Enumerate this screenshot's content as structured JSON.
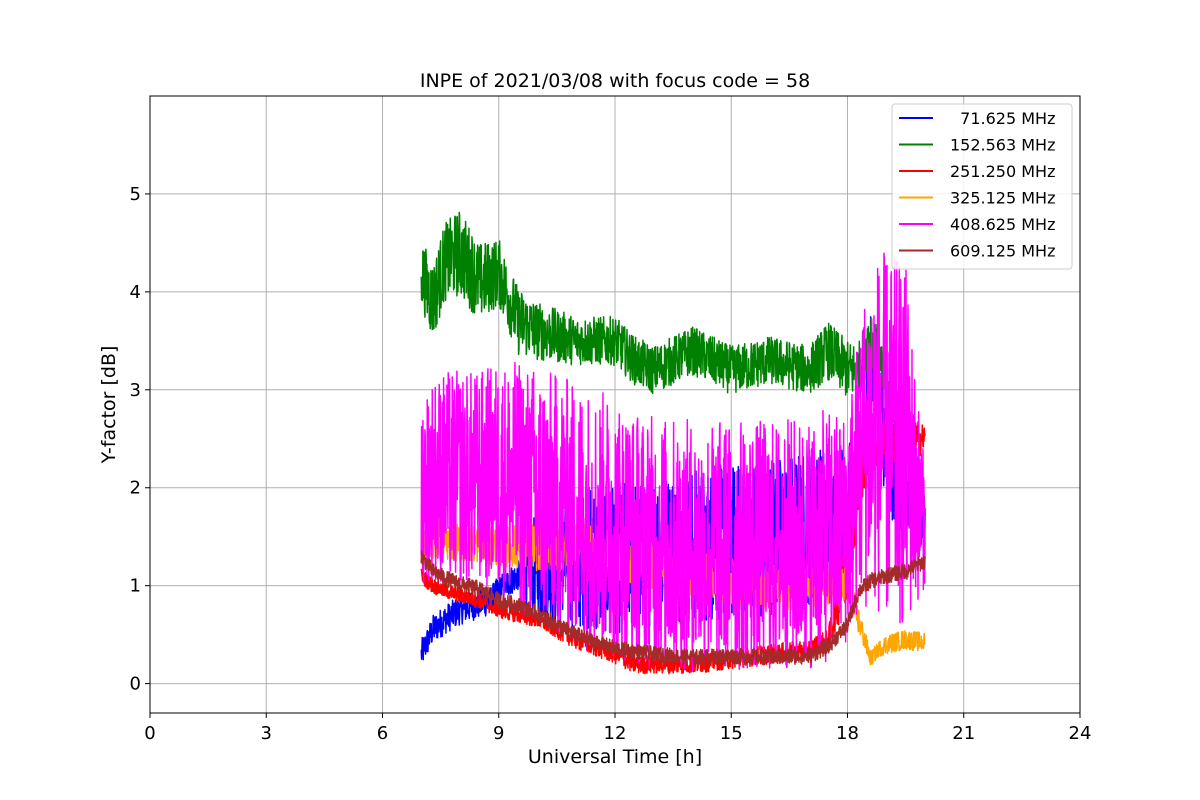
{
  "chart_data": {
    "type": "line",
    "title": "INPE of 2021/03/08 with focus code = 58",
    "xlabel": "Universal Time [h]",
    "ylabel": "Y-factor [dB]",
    "xlim": [
      0,
      24
    ],
    "ylim": [
      -0.3,
      6.0
    ],
    "xticks": [
      0,
      3,
      6,
      9,
      12,
      15,
      18,
      21,
      24
    ],
    "yticks": [
      0,
      1,
      2,
      3,
      4,
      5
    ],
    "grid": true,
    "legend_position": "top-right",
    "series": [
      {
        "name": "  71.625 MHz",
        "color": "#0000ff",
        "x": [
          7.0,
          7.3,
          7.6,
          8.0,
          8.4,
          8.8,
          9.0,
          9.3,
          9.5,
          10.0,
          11.0,
          12.0,
          13.0,
          14.0,
          15.0,
          16.0,
          17.0,
          18.0,
          18.3,
          18.6,
          19.0,
          19.5,
          20.0
        ],
        "y": [
          0.3,
          0.55,
          0.65,
          0.75,
          0.8,
          0.85,
          0.95,
          1.05,
          1.1,
          1.2,
          1.25,
          1.3,
          1.35,
          1.4,
          1.45,
          1.5,
          1.6,
          1.7,
          2.0,
          3.4,
          2.4,
          1.9,
          1.6
        ],
        "band": [
          0.15,
          0.15,
          0.15,
          0.15,
          0.15,
          0.15,
          0.15,
          0.15,
          0.15,
          0.6,
          0.7,
          0.8,
          0.8,
          0.8,
          0.8,
          0.8,
          0.8,
          0.8,
          0.4,
          0.4,
          0.6,
          0.6,
          0.3
        ]
      },
      {
        "name": "152.563 MHz",
        "color": "#008000",
        "x": [
          7.0,
          7.3,
          7.6,
          8.0,
          8.5,
          9.0,
          9.5,
          10.0,
          11.0,
          12.0,
          12.5,
          13.0,
          14.0,
          15.0,
          16.0,
          17.0,
          17.5,
          18.0,
          18.3,
          18.6,
          19.0,
          19.5,
          20.0
        ],
        "y": [
          4.2,
          3.9,
          4.3,
          4.4,
          4.1,
          4.2,
          3.7,
          3.6,
          3.5,
          3.5,
          3.3,
          3.2,
          3.4,
          3.2,
          3.3,
          3.2,
          3.4,
          3.2,
          3.2,
          3.6,
          3.0,
          2.6,
          1.8
        ],
        "band": [
          0.35,
          0.4,
          0.4,
          0.45,
          0.4,
          0.35,
          0.35,
          0.3,
          0.25,
          0.25,
          0.25,
          0.25,
          0.25,
          0.25,
          0.25,
          0.25,
          0.3,
          0.3,
          0.3,
          0.3,
          0.25,
          0.2,
          0.1
        ]
      },
      {
        "name": "251.250 MHz",
        "color": "#ff0000",
        "x": [
          7.0,
          7.3,
          7.6,
          8.0,
          8.5,
          9.0,
          9.5,
          10.0,
          11.0,
          12.0,
          12.5,
          13.0,
          14.0,
          15.0,
          16.0,
          17.0,
          17.5,
          18.0,
          18.3,
          18.6,
          19.0,
          19.5,
          20.0
        ],
        "y": [
          1.1,
          1.0,
          0.95,
          0.9,
          0.85,
          0.75,
          0.7,
          0.65,
          0.45,
          0.3,
          0.2,
          0.2,
          0.2,
          0.25,
          0.3,
          0.35,
          0.45,
          1.2,
          2.0,
          2.4,
          2.5,
          2.5,
          2.5
        ],
        "band": [
          0.08,
          0.08,
          0.08,
          0.08,
          0.08,
          0.08,
          0.08,
          0.08,
          0.1,
          0.1,
          0.1,
          0.1,
          0.1,
          0.1,
          0.1,
          0.1,
          0.1,
          0.4,
          0.3,
          0.25,
          0.25,
          0.25,
          0.15
        ]
      },
      {
        "name": "325.125 MHz",
        "color": "#ffa500",
        "x": [
          7.0,
          8.0,
          9.0,
          10.0,
          11.0,
          12.0,
          13.0,
          14.0,
          15.0,
          16.0,
          17.0,
          18.0,
          18.6,
          18.8,
          19.0,
          19.5,
          20.0
        ],
        "y": [
          1.5,
          1.45,
          1.4,
          1.4,
          1.4,
          1.3,
          1.2,
          1.1,
          1.05,
          1.0,
          1.0,
          1.0,
          0.25,
          0.35,
          0.4,
          0.45,
          0.42
        ],
        "band": [
          0.25,
          0.2,
          0.2,
          0.25,
          0.25,
          0.25,
          0.25,
          0.25,
          0.25,
          0.25,
          0.25,
          0.2,
          0.08,
          0.08,
          0.1,
          0.1,
          0.1
        ]
      },
      {
        "name": "408.625 MHz",
        "color": "#ff00ff",
        "x": [
          7.0,
          7.3,
          7.6,
          8.0,
          8.5,
          9.0,
          9.5,
          10.0,
          11.0,
          12.0,
          12.5,
          13.0,
          14.0,
          15.0,
          16.0,
          17.0,
          17.5,
          18.0,
          18.3,
          18.6,
          19.0,
          19.5,
          20.0
        ],
        "y": [
          2.0,
          2.1,
          2.1,
          2.1,
          2.1,
          2.1,
          2.0,
          1.9,
          1.75,
          1.6,
          1.5,
          1.45,
          1.4,
          1.4,
          1.4,
          1.45,
          1.5,
          1.6,
          2.2,
          2.6,
          2.5,
          2.4,
          1.6
        ],
        "band": [
          1.0,
          1.05,
          1.1,
          1.1,
          1.1,
          1.2,
          1.3,
          1.35,
          1.35,
          1.35,
          1.3,
          1.3,
          1.3,
          1.3,
          1.3,
          1.3,
          1.3,
          1.2,
          1.5,
          1.8,
          1.9,
          1.9,
          0.6
        ]
      },
      {
        "name": "609.125 MHz",
        "color": "#a52a2a",
        "x": [
          7.0,
          7.3,
          7.6,
          8.0,
          8.5,
          9.0,
          9.5,
          10.0,
          10.5,
          11.0,
          11.5,
          12.0,
          13.0,
          14.0,
          15.0,
          16.0,
          17.0,
          17.5,
          18.0,
          18.3,
          18.6,
          19.0,
          19.5,
          20.0
        ],
        "y": [
          1.3,
          1.15,
          1.08,
          1.02,
          0.97,
          0.85,
          0.8,
          0.72,
          0.6,
          0.5,
          0.42,
          0.36,
          0.3,
          0.27,
          0.28,
          0.27,
          0.28,
          0.38,
          0.6,
          0.95,
          1.05,
          1.1,
          1.15,
          1.25
        ],
        "band": [
          0.08,
          0.08,
          0.08,
          0.08,
          0.08,
          0.08,
          0.08,
          0.08,
          0.08,
          0.08,
          0.08,
          0.08,
          0.08,
          0.08,
          0.08,
          0.08,
          0.08,
          0.08,
          0.08,
          0.08,
          0.08,
          0.08,
          0.08,
          0.08
        ]
      }
    ]
  }
}
